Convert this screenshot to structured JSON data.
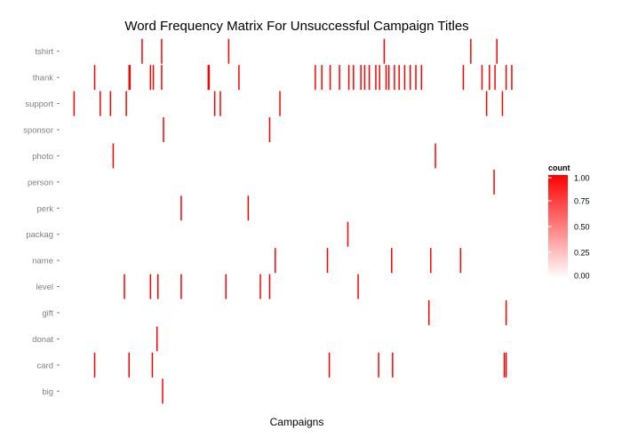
{
  "chart_data": {
    "type": "heatmap",
    "title": "Word Frequency Matrix For Unsuccessful Campaign Titles",
    "xlabel": "Campaigns",
    "ylabel": "",
    "x_range": [
      0,
      480
    ],
    "legend": {
      "title": "count",
      "ticks": [
        "1.00",
        "0.75",
        "0.50",
        "0.25",
        "0.00"
      ],
      "tick_values": [
        1.0,
        0.75,
        0.5,
        0.25,
        0.0
      ],
      "placement": "right",
      "color_low": "#ffffff",
      "color_high": "#ff0000"
    },
    "grid": false,
    "words": [
      "tshirt",
      "thank",
      "support",
      "sponsor",
      "photo",
      "person",
      "perk",
      "packag",
      "name",
      "level",
      "gift",
      "donat",
      "card",
      "big"
    ],
    "cells": [
      {
        "word": "tshirt",
        "campaigns": [
          79,
          100,
          172,
          339,
          432,
          460
        ],
        "count": 1
      },
      {
        "word": "thank",
        "campaigns": [
          28,
          65,
          66,
          88,
          91,
          100,
          150,
          151,
          183,
          265,
          272,
          281,
          291,
          301,
          306,
          314,
          318,
          323,
          330,
          334,
          341,
          344,
          350,
          355,
          361,
          367,
          373,
          379,
          424,
          444,
          452,
          458,
          470,
          476
        ],
        "count": 1
      },
      {
        "word": "support",
        "campaigns": [
          6,
          34,
          45,
          62,
          157,
          163,
          227,
          449,
          466
        ],
        "count": 1
      },
      {
        "word": "sponsor",
        "campaigns": [
          102,
          216
        ],
        "count": 1
      },
      {
        "word": "photo",
        "campaigns": [
          48,
          394
        ],
        "count": 1
      },
      {
        "word": "person",
        "campaigns": [
          457
        ],
        "count": 1
      },
      {
        "word": "perk",
        "campaigns": [
          121,
          193
        ],
        "count": 1
      },
      {
        "word": "packag",
        "campaigns": [
          300
        ],
        "count": 1
      },
      {
        "word": "name",
        "campaigns": [
          222,
          278,
          347,
          389,
          421
        ],
        "count": 1
      },
      {
        "word": "level",
        "campaigns": [
          60,
          88,
          96,
          121,
          169,
          206,
          216,
          311
        ],
        "count": 1
      },
      {
        "word": "gift",
        "campaigns": [
          387,
          470
        ],
        "count": 1
      },
      {
        "word": "donat",
        "campaigns": [
          95
        ],
        "count": 1
      },
      {
        "word": "card",
        "campaigns": [
          28,
          65,
          90,
          280,
          333,
          348,
          468,
          470
        ],
        "count": 1
      },
      {
        "word": "big",
        "campaigns": [
          101
        ],
        "count": 1
      }
    ]
  }
}
